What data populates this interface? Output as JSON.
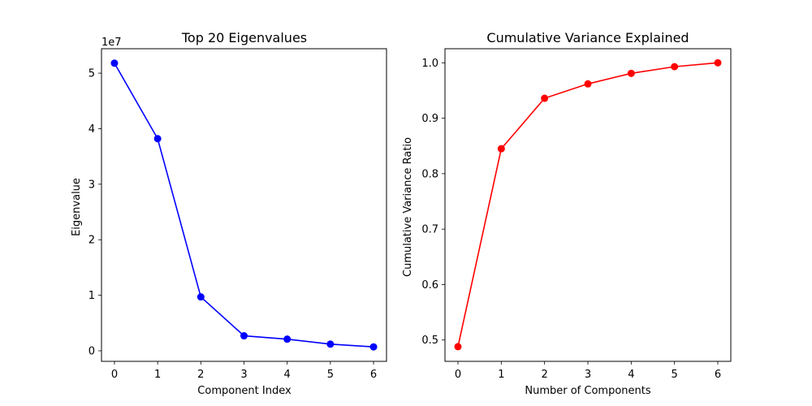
{
  "chart_data": [
    {
      "type": "line",
      "title": "Top 20 Eigenvalues",
      "xlabel": "Component Index",
      "ylabel": "Eigenvalue",
      "y_offset_label": "1e7",
      "x": [
        0,
        1,
        2,
        3,
        4,
        5,
        6
      ],
      "x_ticks": [
        "0",
        "1",
        "2",
        "3",
        "4",
        "5",
        "6"
      ],
      "y_ticks": [
        "0",
        "1",
        "2",
        "3",
        "4",
        "5"
      ],
      "y_tick_values": [
        0,
        1,
        2,
        3,
        4,
        5
      ],
      "xlim": [
        -0.3,
        6.3
      ],
      "ylim": [
        -0.19,
        5.44
      ],
      "grid": false,
      "series": [
        {
          "values": [
            5.18,
            3.82,
            0.97,
            0.27,
            0.21,
            0.12,
            0.07
          ],
          "color": "#0000ff",
          "marker": "circle"
        }
      ]
    },
    {
      "type": "line",
      "title": "Cumulative Variance Explained",
      "xlabel": "Number of Components",
      "ylabel": "Cumulative Variance Ratio",
      "x": [
        0,
        1,
        2,
        3,
        4,
        5,
        6
      ],
      "x_ticks": [
        "0",
        "1",
        "2",
        "3",
        "4",
        "5",
        "6"
      ],
      "y_ticks": [
        "0.5",
        "0.6",
        "0.7",
        "0.8",
        "0.9",
        "1.0"
      ],
      "y_tick_values": [
        0.5,
        0.6,
        0.7,
        0.8,
        0.9,
        1.0
      ],
      "xlim": [
        -0.3,
        6.3
      ],
      "ylim": [
        0.4615,
        1.0254
      ],
      "grid": false,
      "series": [
        {
          "values": [
            0.488,
            0.845,
            0.936,
            0.962,
            0.981,
            0.993,
            1.0
          ],
          "color": "#ff0000",
          "marker": "circle"
        }
      ]
    }
  ]
}
